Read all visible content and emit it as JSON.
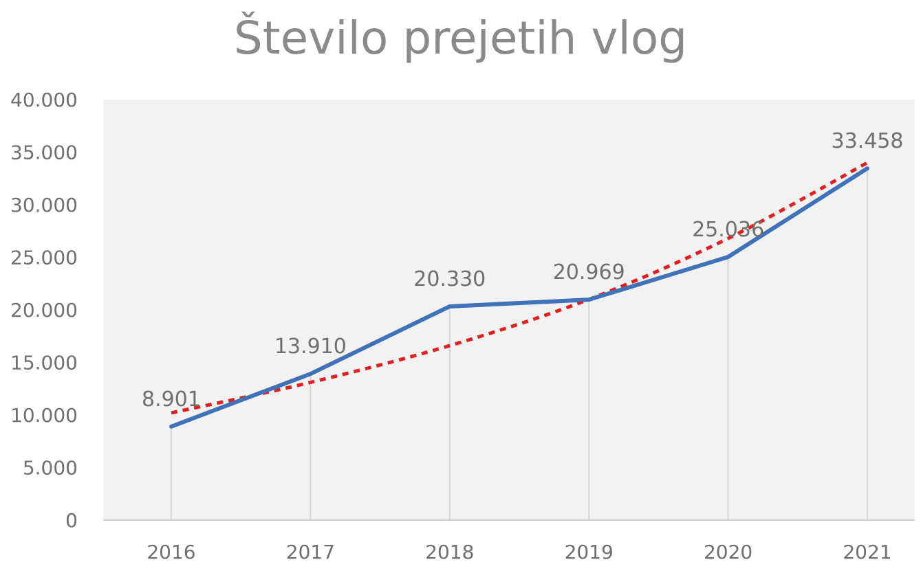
{
  "chart_data": {
    "type": "line",
    "title": "Število prejetih vlog",
    "xlabel": "",
    "ylabel": "",
    "categories": [
      "2016",
      "2017",
      "2018",
      "2019",
      "2020",
      "2021"
    ],
    "series": [
      {
        "values": [
          8901,
          13910,
          20330,
          20969,
          25036,
          33458
        ],
        "value_labels": [
          "8.901",
          "13.910",
          "20.330",
          "20.969",
          "25.036",
          "33.458"
        ],
        "color": "#3f72b8",
        "style": "solid"
      },
      {
        "trendline": "polynomial",
        "values": [
          10200,
          13100,
          16600,
          21000,
          26800,
          34000
        ],
        "color": "#e02020",
        "style": "dotted"
      }
    ],
    "ylim": [
      0,
      40000
    ],
    "yticks": [
      0,
      5000,
      10000,
      15000,
      20000,
      25000,
      30000,
      35000,
      40000
    ],
    "ytick_labels": [
      "0",
      "5.000",
      "10.000",
      "15.000",
      "20.000",
      "25.000",
      "30.000",
      "35.000",
      "40.000"
    ],
    "grid": "vertical drop lines",
    "legend": "none",
    "colors": {
      "plot_background": "#f2f2f2",
      "axis_line": "#d0d0d0",
      "drop_line": "#d6d6d6",
      "text": "#6f6f6f",
      "title": "#8a8a8a"
    }
  }
}
